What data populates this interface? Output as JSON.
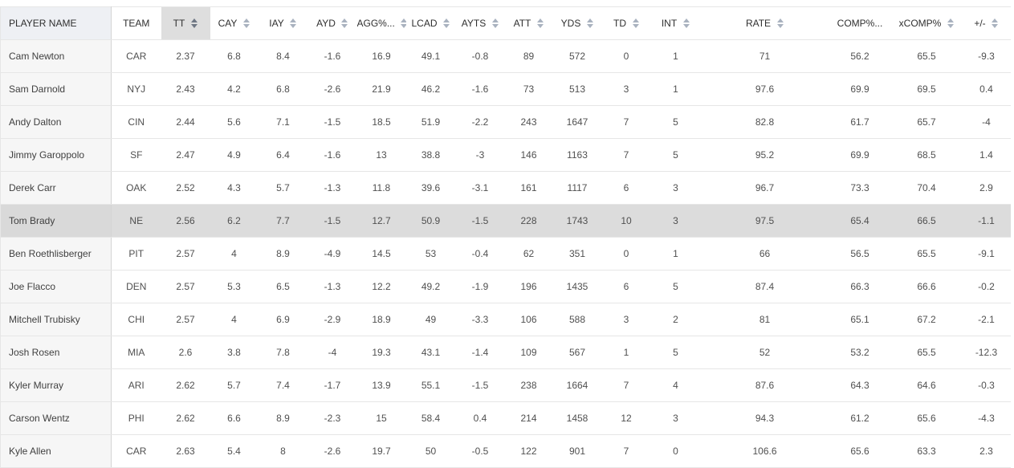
{
  "columns": [
    {
      "key": "name",
      "label": "PLAYER NAME",
      "sortable": false
    },
    {
      "key": "team",
      "label": "TEAM",
      "sortable": false
    },
    {
      "key": "tt",
      "label": "TT",
      "sortable": true,
      "sorted": true
    },
    {
      "key": "cay",
      "label": "CAY",
      "sortable": true
    },
    {
      "key": "iay",
      "label": "IAY",
      "sortable": true
    },
    {
      "key": "ayd",
      "label": "AYD",
      "sortable": true
    },
    {
      "key": "agg",
      "label": "AGG%...",
      "sortable": true
    },
    {
      "key": "lcad",
      "label": "LCAD",
      "sortable": true
    },
    {
      "key": "ayts",
      "label": "AYTS",
      "sortable": true
    },
    {
      "key": "att",
      "label": "ATT",
      "sortable": true
    },
    {
      "key": "yds",
      "label": "YDS",
      "sortable": true
    },
    {
      "key": "td",
      "label": "TD",
      "sortable": true
    },
    {
      "key": "int",
      "label": "INT",
      "sortable": true
    },
    {
      "key": "rate",
      "label": "RATE",
      "sortable": true
    },
    {
      "key": "comp",
      "label": "COMP%...",
      "sortable": false
    },
    {
      "key": "xcomp",
      "label": "xCOMP%",
      "sortable": true
    },
    {
      "key": "pm",
      "label": "+/-",
      "sortable": true
    }
  ],
  "highlight_row": 5,
  "rows": [
    [
      "Cam Newton",
      "CAR",
      "2.37",
      "6.8",
      "8.4",
      "-1.6",
      "16.9",
      "49.1",
      "-0.8",
      "89",
      "572",
      "0",
      "1",
      "71",
      "56.2",
      "65.5",
      "-9.3"
    ],
    [
      "Sam Darnold",
      "NYJ",
      "2.43",
      "4.2",
      "6.8",
      "-2.6",
      "21.9",
      "46.2",
      "-1.6",
      "73",
      "513",
      "3",
      "1",
      "97.6",
      "69.9",
      "69.5",
      "0.4"
    ],
    [
      "Andy Dalton",
      "CIN",
      "2.44",
      "5.6",
      "7.1",
      "-1.5",
      "18.5",
      "51.9",
      "-2.2",
      "243",
      "1647",
      "7",
      "5",
      "82.8",
      "61.7",
      "65.7",
      "-4"
    ],
    [
      "Jimmy Garoppolo",
      "SF",
      "2.47",
      "4.9",
      "6.4",
      "-1.6",
      "13",
      "38.8",
      "-3",
      "146",
      "1163",
      "7",
      "5",
      "95.2",
      "69.9",
      "68.5",
      "1.4"
    ],
    [
      "Derek Carr",
      "OAK",
      "2.52",
      "4.3",
      "5.7",
      "-1.3",
      "11.8",
      "39.6",
      "-3.1",
      "161",
      "1117",
      "6",
      "3",
      "96.7",
      "73.3",
      "70.4",
      "2.9"
    ],
    [
      "Tom Brady",
      "NE",
      "2.56",
      "6.2",
      "7.7",
      "-1.5",
      "12.7",
      "50.9",
      "-1.5",
      "228",
      "1743",
      "10",
      "3",
      "97.5",
      "65.4",
      "66.5",
      "-1.1"
    ],
    [
      "Ben Roethlisberger",
      "PIT",
      "2.57",
      "4",
      "8.9",
      "-4.9",
      "14.5",
      "53",
      "-0.4",
      "62",
      "351",
      "0",
      "1",
      "66",
      "56.5",
      "65.5",
      "-9.1"
    ],
    [
      "Joe Flacco",
      "DEN",
      "2.57",
      "5.3",
      "6.5",
      "-1.3",
      "12.2",
      "49.2",
      "-1.9",
      "196",
      "1435",
      "6",
      "5",
      "87.4",
      "66.3",
      "66.6",
      "-0.2"
    ],
    [
      "Mitchell Trubisky",
      "CHI",
      "2.57",
      "4",
      "6.9",
      "-2.9",
      "18.9",
      "49",
      "-3.3",
      "106",
      "588",
      "3",
      "2",
      "81",
      "65.1",
      "67.2",
      "-2.1"
    ],
    [
      "Josh Rosen",
      "MIA",
      "2.6",
      "3.8",
      "7.8",
      "-4",
      "19.3",
      "43.1",
      "-1.4",
      "109",
      "567",
      "1",
      "5",
      "52",
      "53.2",
      "65.5",
      "-12.3"
    ],
    [
      "Kyler Murray",
      "ARI",
      "2.62",
      "5.7",
      "7.4",
      "-1.7",
      "13.9",
      "55.1",
      "-1.5",
      "238",
      "1664",
      "7",
      "4",
      "87.6",
      "64.3",
      "64.6",
      "-0.3"
    ],
    [
      "Carson Wentz",
      "PHI",
      "2.62",
      "6.6",
      "8.9",
      "-2.3",
      "15",
      "58.4",
      "0.4",
      "214",
      "1458",
      "12",
      "3",
      "94.3",
      "61.2",
      "65.6",
      "-4.3"
    ],
    [
      "Kyle Allen",
      "CAR",
      "2.63",
      "5.4",
      "8",
      "-2.6",
      "19.7",
      "50",
      "-0.5",
      "122",
      "901",
      "7",
      "0",
      "106.6",
      "65.6",
      "63.3",
      "2.3"
    ]
  ]
}
